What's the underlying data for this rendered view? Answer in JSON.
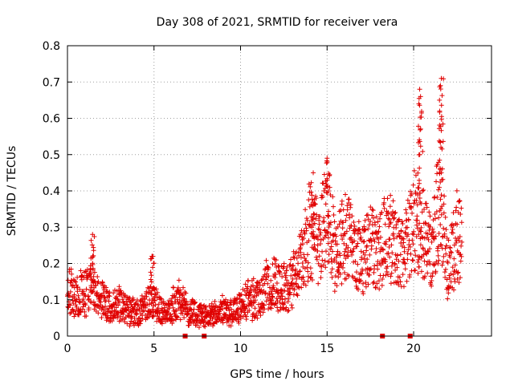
{
  "chart_data": {
    "type": "scatter",
    "title": "Day 308 of 2021, SRMTID for receiver vera",
    "xlabel": "GPS time / hours",
    "ylabel": "SRMTID / TECUs",
    "xlim": [
      0,
      24.5
    ],
    "ylim": [
      0,
      0.8
    ],
    "xticks": [
      0,
      5,
      10,
      15,
      20
    ],
    "yticks": [
      0,
      0.1,
      0.2,
      0.3,
      0.4,
      0.5,
      0.6,
      0.7,
      0.8
    ],
    "xtick_labels": [
      "0",
      "5",
      "10",
      "15",
      "20"
    ],
    "ytick_labels": [
      "0",
      "0.1",
      "0.2",
      "0.3",
      "0.4",
      "0.5",
      "0.6",
      "0.7",
      "0.8"
    ],
    "grid": true,
    "color": "#e00000",
    "marker": "plus",
    "zero_markers_x": [
      6.8,
      7.9,
      18.2,
      19.8
    ],
    "envelope": [
      [
        0.0,
        0.13
      ],
      [
        0.5,
        0.11
      ],
      [
        1.0,
        0.12
      ],
      [
        1.5,
        0.14
      ],
      [
        2.0,
        0.1
      ],
      [
        2.5,
        0.08
      ],
      [
        3.0,
        0.09
      ],
      [
        3.5,
        0.07
      ],
      [
        4.0,
        0.06
      ],
      [
        4.5,
        0.08
      ],
      [
        5.0,
        0.1
      ],
      [
        5.5,
        0.06
      ],
      [
        6.0,
        0.08
      ],
      [
        6.5,
        0.1
      ],
      [
        7.0,
        0.07
      ],
      [
        7.5,
        0.06
      ],
      [
        8.0,
        0.05
      ],
      [
        8.5,
        0.06
      ],
      [
        9.0,
        0.07
      ],
      [
        9.5,
        0.07
      ],
      [
        10.0,
        0.08
      ],
      [
        10.5,
        0.1
      ],
      [
        11.0,
        0.1
      ],
      [
        11.5,
        0.14
      ],
      [
        12.0,
        0.15
      ],
      [
        12.5,
        0.13
      ],
      [
        13.0,
        0.15
      ],
      [
        13.5,
        0.2
      ],
      [
        14.0,
        0.3
      ],
      [
        14.5,
        0.26
      ],
      [
        15.0,
        0.35
      ],
      [
        15.5,
        0.22
      ],
      [
        16.0,
        0.27
      ],
      [
        16.5,
        0.25
      ],
      [
        17.0,
        0.2
      ],
      [
        17.5,
        0.25
      ],
      [
        18.0,
        0.22
      ],
      [
        18.5,
        0.3
      ],
      [
        19.0,
        0.24
      ],
      [
        19.5,
        0.23
      ],
      [
        20.0,
        0.33
      ],
      [
        20.5,
        0.28
      ],
      [
        21.0,
        0.22
      ],
      [
        21.5,
        0.38
      ],
      [
        22.0,
        0.18
      ],
      [
        22.5,
        0.28
      ],
      [
        22.8,
        0.25
      ]
    ],
    "spikes": [
      {
        "x": 1.45,
        "y": 0.28
      },
      {
        "x": 4.9,
        "y": 0.22
      },
      {
        "x": 14.2,
        "y": 0.45
      },
      {
        "x": 15.0,
        "y": 0.49
      },
      {
        "x": 20.35,
        "y": 0.68
      },
      {
        "x": 20.4,
        "y": 0.66
      },
      {
        "x": 21.6,
        "y": 0.71
      },
      {
        "x": 21.55,
        "y": 0.69
      }
    ]
  }
}
